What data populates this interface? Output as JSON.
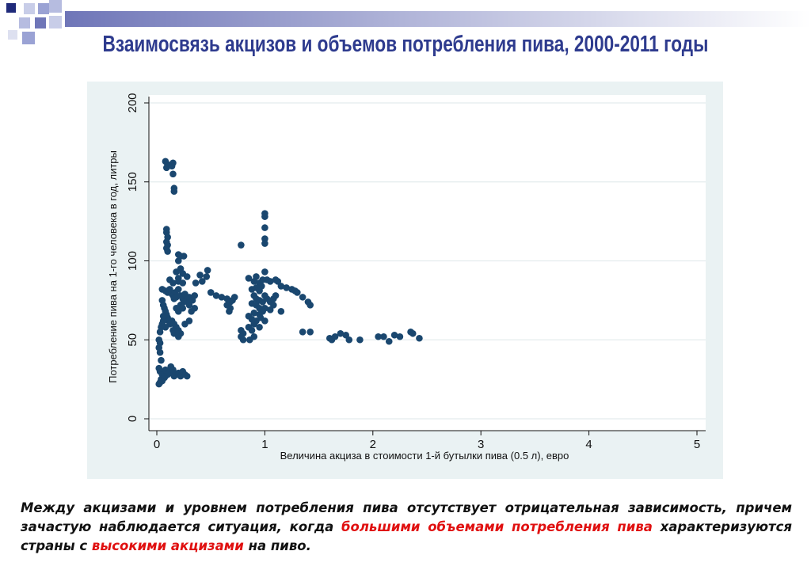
{
  "slide": {
    "title": "Взаимосвязь акцизов и объемов потребления пива, 2000-2011 годы",
    "accent_color": "#2e3b8e",
    "caption": {
      "part1": "Между акцизами и уровнем потребления пива отсутствует отрицательная зависимость, причем зачастую наблюдается ситуация, когда ",
      "highlight1": "большими объемами потребления пива",
      "part2": " характеризуются страны с ",
      "highlight2": "высокими акцизами",
      "part3": " на пиво.",
      "highlight_color": "#e01010"
    }
  },
  "chart_data": {
    "type": "scatter",
    "xlabel": "Величина акциза в стоимости 1-й бутылки пива (0.5 л), евро",
    "ylabel": "Потребление пива на 1-го человека в год, литры",
    "xlim": [
      0,
      5
    ],
    "ylim": [
      0,
      200
    ],
    "xticks": [
      "0",
      "1",
      "2",
      "3",
      "4",
      "5"
    ],
    "yticks": [
      "0",
      "50",
      "100",
      "150",
      "200"
    ],
    "grid": "horizontal",
    "marker_color": "#1a476f",
    "background_color": "#eaf2f3",
    "points": [
      [
        0.08,
        163
      ],
      [
        0.1,
        161
      ],
      [
        0.09,
        159
      ],
      [
        0.15,
        162
      ],
      [
        0.14,
        160
      ],
      [
        0.15,
        155
      ],
      [
        0.16,
        146
      ],
      [
        0.16,
        144
      ],
      [
        0.09,
        120
      ],
      [
        0.09,
        118
      ],
      [
        0.1,
        115
      ],
      [
        0.09,
        112
      ],
      [
        0.1,
        110
      ],
      [
        0.09,
        108
      ],
      [
        0.1,
        106
      ],
      [
        0.2,
        104
      ],
      [
        0.22,
        103
      ],
      [
        0.25,
        103
      ],
      [
        0.2,
        100
      ],
      [
        0.22,
        95
      ],
      [
        0.18,
        93
      ],
      [
        0.24,
        92
      ],
      [
        0.28,
        90
      ],
      [
        0.2,
        89
      ],
      [
        0.12,
        88
      ],
      [
        0.15,
        86
      ],
      [
        0.2,
        87
      ],
      [
        0.24,
        86
      ],
      [
        0.36,
        86
      ],
      [
        0.42,
        87
      ],
      [
        0.46,
        90
      ],
      [
        0.47,
        94
      ],
      [
        0.4,
        91
      ],
      [
        0.05,
        82
      ],
      [
        0.08,
        81
      ],
      [
        0.1,
        80
      ],
      [
        0.12,
        82
      ],
      [
        0.14,
        79
      ],
      [
        0.15,
        78
      ],
      [
        0.16,
        76
      ],
      [
        0.17,
        80
      ],
      [
        0.18,
        77
      ],
      [
        0.2,
        82
      ],
      [
        0.22,
        78
      ],
      [
        0.24,
        76
      ],
      [
        0.26,
        79
      ],
      [
        0.28,
        75
      ],
      [
        0.3,
        77
      ],
      [
        0.25,
        74
      ],
      [
        0.22,
        72
      ],
      [
        0.18,
        70
      ],
      [
        0.2,
        68
      ],
      [
        0.24,
        70
      ],
      [
        0.05,
        75
      ],
      [
        0.06,
        72
      ],
      [
        0.07,
        70
      ],
      [
        0.08,
        68
      ],
      [
        0.09,
        66
      ],
      [
        0.1,
        64
      ],
      [
        0.11,
        62
      ],
      [
        0.12,
        60
      ],
      [
        0.06,
        62
      ],
      [
        0.04,
        58
      ],
      [
        0.03,
        55
      ],
      [
        0.05,
        60
      ],
      [
        0.06,
        65
      ],
      [
        0.08,
        58
      ],
      [
        0.14,
        62
      ],
      [
        0.16,
        60
      ],
      [
        0.18,
        58
      ],
      [
        0.15,
        56
      ],
      [
        0.16,
        54
      ],
      [
        0.2,
        56
      ],
      [
        0.22,
        54
      ],
      [
        0.2,
        52
      ],
      [
        0.26,
        60
      ],
      [
        0.3,
        62
      ],
      [
        0.32,
        68
      ],
      [
        0.35,
        70
      ],
      [
        0.3,
        72
      ],
      [
        0.33,
        75
      ],
      [
        0.35,
        78
      ],
      [
        0.02,
        50
      ],
      [
        0.03,
        48
      ],
      [
        0.02,
        45
      ],
      [
        0.03,
        42
      ],
      [
        0.04,
        37
      ],
      [
        0.02,
        32
      ],
      [
        0.03,
        30
      ],
      [
        0.05,
        28
      ],
      [
        0.04,
        25
      ],
      [
        0.03,
        23
      ],
      [
        0.02,
        22
      ],
      [
        0.05,
        24
      ],
      [
        0.07,
        26
      ],
      [
        0.08,
        27
      ],
      [
        0.1,
        28
      ],
      [
        0.12,
        30
      ],
      [
        0.13,
        33
      ],
      [
        0.14,
        29
      ],
      [
        0.16,
        27
      ],
      [
        0.18,
        28
      ],
      [
        0.2,
        29
      ],
      [
        0.22,
        27
      ],
      [
        0.24,
        30
      ],
      [
        0.26,
        28
      ],
      [
        0.28,
        27
      ],
      [
        0.08,
        31
      ],
      [
        0.11,
        29
      ],
      [
        0.15,
        31
      ],
      [
        0.5,
        80
      ],
      [
        0.55,
        78
      ],
      [
        0.6,
        77
      ],
      [
        0.65,
        76
      ],
      [
        0.68,
        74
      ],
      [
        0.7,
        75
      ],
      [
        0.72,
        77
      ],
      [
        0.65,
        72
      ],
      [
        0.68,
        70
      ],
      [
        0.67,
        68
      ],
      [
        0.78,
        110
      ],
      [
        0.78,
        56
      ],
      [
        0.8,
        54
      ],
      [
        0.78,
        52
      ],
      [
        0.8,
        50
      ],
      [
        0.85,
        58
      ],
      [
        0.88,
        56
      ],
      [
        0.9,
        52
      ],
      [
        0.86,
        50
      ],
      [
        0.85,
        89
      ],
      [
        0.9,
        87
      ],
      [
        0.92,
        90
      ],
      [
        0.95,
        86
      ],
      [
        0.98,
        88
      ],
      [
        1.0,
        93
      ],
      [
        0.97,
        84
      ],
      [
        0.92,
        83
      ],
      [
        0.88,
        82
      ],
      [
        0.95,
        81
      ],
      [
        0.9,
        78
      ],
      [
        0.92,
        76
      ],
      [
        0.95,
        75
      ],
      [
        0.88,
        73
      ],
      [
        0.92,
        72
      ],
      [
        0.95,
        70
      ],
      [
        0.98,
        74
      ],
      [
        1.0,
        78
      ],
      [
        1.02,
        76
      ],
      [
        1.05,
        74
      ],
      [
        1.08,
        72
      ],
      [
        1.0,
        70
      ],
      [
        1.05,
        69
      ],
      [
        0.98,
        68
      ],
      [
        0.95,
        66
      ],
      [
        0.9,
        67
      ],
      [
        0.85,
        65
      ],
      [
        0.88,
        63
      ],
      [
        0.92,
        62
      ],
      [
        0.96,
        64
      ],
      [
        1.0,
        62
      ],
      [
        0.95,
        58
      ],
      [
        0.9,
        60
      ],
      [
        1.0,
        130
      ],
      [
        1.0,
        128
      ],
      [
        1.0,
        121
      ],
      [
        1.0,
        114
      ],
      [
        1.0,
        111
      ],
      [
        1.02,
        88
      ],
      [
        1.05,
        87
      ],
      [
        1.1,
        88
      ],
      [
        1.12,
        87
      ],
      [
        1.15,
        84
      ],
      [
        1.2,
        83
      ],
      [
        1.25,
        82
      ],
      [
        1.28,
        81
      ],
      [
        1.3,
        80
      ],
      [
        1.35,
        77
      ],
      [
        1.4,
        74
      ],
      [
        1.42,
        72
      ],
      [
        1.1,
        78
      ],
      [
        1.08,
        76
      ],
      [
        1.15,
        68
      ],
      [
        1.35,
        55
      ],
      [
        1.42,
        55
      ],
      [
        1.6,
        51
      ],
      [
        1.62,
        50
      ],
      [
        1.65,
        52
      ],
      [
        1.7,
        54
      ],
      [
        1.75,
        53
      ],
      [
        1.78,
        50
      ],
      [
        1.88,
        50
      ],
      [
        2.05,
        52
      ],
      [
        2.1,
        52
      ],
      [
        2.15,
        49
      ],
      [
        2.2,
        53
      ],
      [
        2.25,
        52
      ],
      [
        2.35,
        55
      ],
      [
        2.37,
        54
      ],
      [
        2.43,
        51
      ]
    ]
  }
}
